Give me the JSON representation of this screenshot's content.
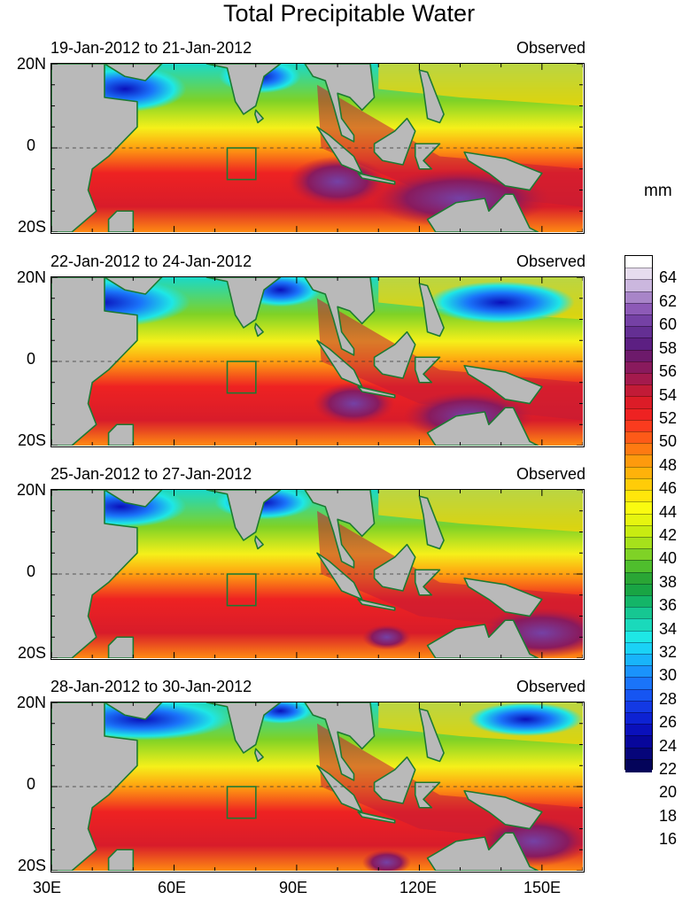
{
  "title": "Total Precipitable Water",
  "units": "mm",
  "panels": [
    {
      "date": "19-Jan-2012 to 21-Jan-2012",
      "label": "Observed"
    },
    {
      "date": "22-Jan-2012 to 24-Jan-2012",
      "label": "Observed"
    },
    {
      "date": "25-Jan-2012 to 27-Jan-2012",
      "label": "Observed"
    },
    {
      "date": "28-Jan-2012 to 30-Jan-2012",
      "label": "Observed"
    }
  ],
  "lat_labels": [
    "20N",
    "0",
    "20S"
  ],
  "lon_labels": [
    "30E",
    "60E",
    "90E",
    "120E",
    "150E"
  ],
  "colorbar": {
    "labels": [
      "64",
      "62",
      "60",
      "58",
      "56",
      "54",
      "52",
      "50",
      "48",
      "46",
      "44",
      "42",
      "40",
      "38",
      "36",
      "34",
      "32",
      "30",
      "28",
      "26",
      "24",
      "22",
      "20",
      "18",
      "16"
    ],
    "colors": [
      "#ffffff",
      "#e6dcee",
      "#cbb7de",
      "#a885c8",
      "#8d5ab7",
      "#7541a5",
      "#642f93",
      "#5c1f82",
      "#6d1a6b",
      "#891a5d",
      "#a41a4d",
      "#c21b37",
      "#dc1c27",
      "#ee2222",
      "#fa3b1e",
      "#fd5a18",
      "#fe7a12",
      "#fe9a0d",
      "#ffb20a",
      "#ffcc08",
      "#ffe60b",
      "#fafb10",
      "#e6f50f",
      "#c8ec11",
      "#a6e11b",
      "#7fd226",
      "#4fbe2d",
      "#2aa635",
      "#19a544",
      "#14b568",
      "#16c792",
      "#1ad9bb",
      "#1ee7e5",
      "#1ad2f6",
      "#18b4fa",
      "#1a93fc",
      "#1a74fa",
      "#1655f2",
      "#1339e4",
      "#0d22d3",
      "#0a10bb",
      "#07069b",
      "#06057a",
      "#04045a"
    ]
  }
}
